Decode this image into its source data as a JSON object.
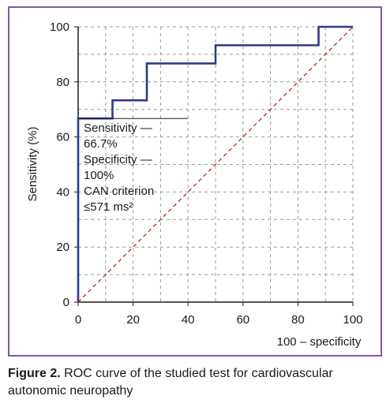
{
  "caption": {
    "label": "Figure 2.",
    "text": "ROC curve of the studied test for cardiovascular autonomic neuropathy"
  },
  "colors": {
    "frame": "#7b5aa6",
    "roc_line": "#2e3a8c",
    "reference_line": "#b0392e",
    "grid": "#9a9a9a"
  },
  "chart_data": {
    "type": "line",
    "xlabel": "100 – specificity",
    "ylabel": "Sensitivity (%)",
    "xlim": [
      0,
      100
    ],
    "ylim": [
      0,
      100
    ],
    "xticks": [
      "0",
      "20",
      "40",
      "60",
      "80",
      "100"
    ],
    "yticks": [
      "0",
      "20",
      "40",
      "60",
      "80",
      "100"
    ],
    "grid": true,
    "series": [
      {
        "style": "solid",
        "x": [
          0,
          0,
          12.5,
          12.5,
          25,
          25,
          50,
          50,
          87.5,
          87.5,
          100
        ],
        "y": [
          0,
          66.7,
          66.7,
          73.3,
          73.3,
          86.7,
          86.7,
          93.3,
          93.3,
          100,
          100
        ]
      },
      {
        "style": "dashed",
        "x": [
          0,
          100
        ],
        "y": [
          0,
          100
        ]
      }
    ],
    "annotation": {
      "point": {
        "x": 0,
        "y": 66.7
      },
      "lines": [
        "Sensitivity —",
        "66.7%",
        "Specificity —",
        "100%",
        "CAN criterion",
        "≤571 ms²"
      ]
    }
  }
}
